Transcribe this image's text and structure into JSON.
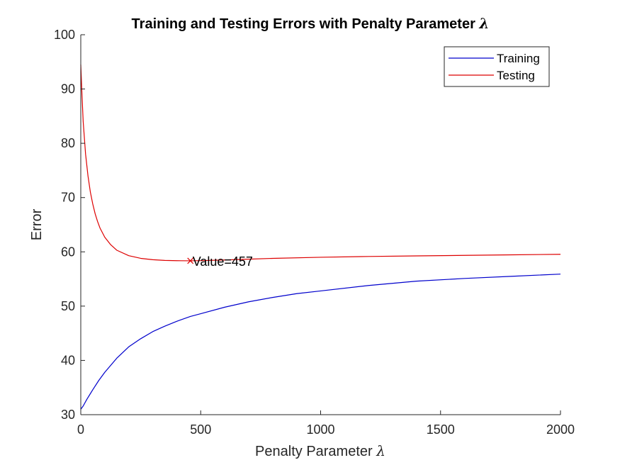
{
  "chart_data": {
    "type": "line",
    "title": "Training and Testing Errors with Penalty Parameter",
    "title_symbol": "λ",
    "xlabel": "Penalty Parameter",
    "xlabel_symbol": "λ",
    "ylabel": "Error",
    "xlim": [
      0,
      2000
    ],
    "ylim": [
      30,
      100
    ],
    "xticks": [
      0,
      500,
      1000,
      1500,
      2000
    ],
    "yticks": [
      30,
      40,
      50,
      60,
      70,
      80,
      90,
      100
    ],
    "grid": false,
    "legend": {
      "position": "top-right"
    },
    "series": [
      {
        "name": "Training",
        "color": "#0000CC",
        "x": [
          0,
          10,
          25,
          50,
          75,
          100,
          150,
          200,
          250,
          300,
          350,
          400,
          457,
          500,
          600,
          700,
          800,
          900,
          1000,
          1200,
          1400,
          1600,
          1800,
          2000
        ],
        "y": [
          31.0,
          31.6,
          32.8,
          34.6,
          36.3,
          37.8,
          40.4,
          42.5,
          44.0,
          45.3,
          46.3,
          47.2,
          48.1,
          48.6,
          49.8,
          50.8,
          51.6,
          52.3,
          52.8,
          53.8,
          54.6,
          55.1,
          55.5,
          55.9
        ]
      },
      {
        "name": "Testing",
        "color": "#DD0000",
        "x": [
          0,
          5,
          10,
          20,
          30,
          40,
          50,
          60,
          70,
          80,
          100,
          125,
          150,
          200,
          250,
          300,
          350,
          400,
          457,
          500,
          600,
          700,
          800,
          1000,
          1200,
          1400,
          1600,
          1800,
          2000
        ],
        "y": [
          94.5,
          89.0,
          84.0,
          78.0,
          74.0,
          71.0,
          68.8,
          67.0,
          65.6,
          64.4,
          62.7,
          61.3,
          60.3,
          59.3,
          58.8,
          58.55,
          58.42,
          58.37,
          58.35,
          58.38,
          58.5,
          58.65,
          58.8,
          59.0,
          59.15,
          59.25,
          59.35,
          59.45,
          59.55
        ]
      }
    ],
    "annotations": [
      {
        "text": "Value=457",
        "marker": "x",
        "x": 457,
        "y": 58.35,
        "color": "#DD0000"
      }
    ]
  }
}
